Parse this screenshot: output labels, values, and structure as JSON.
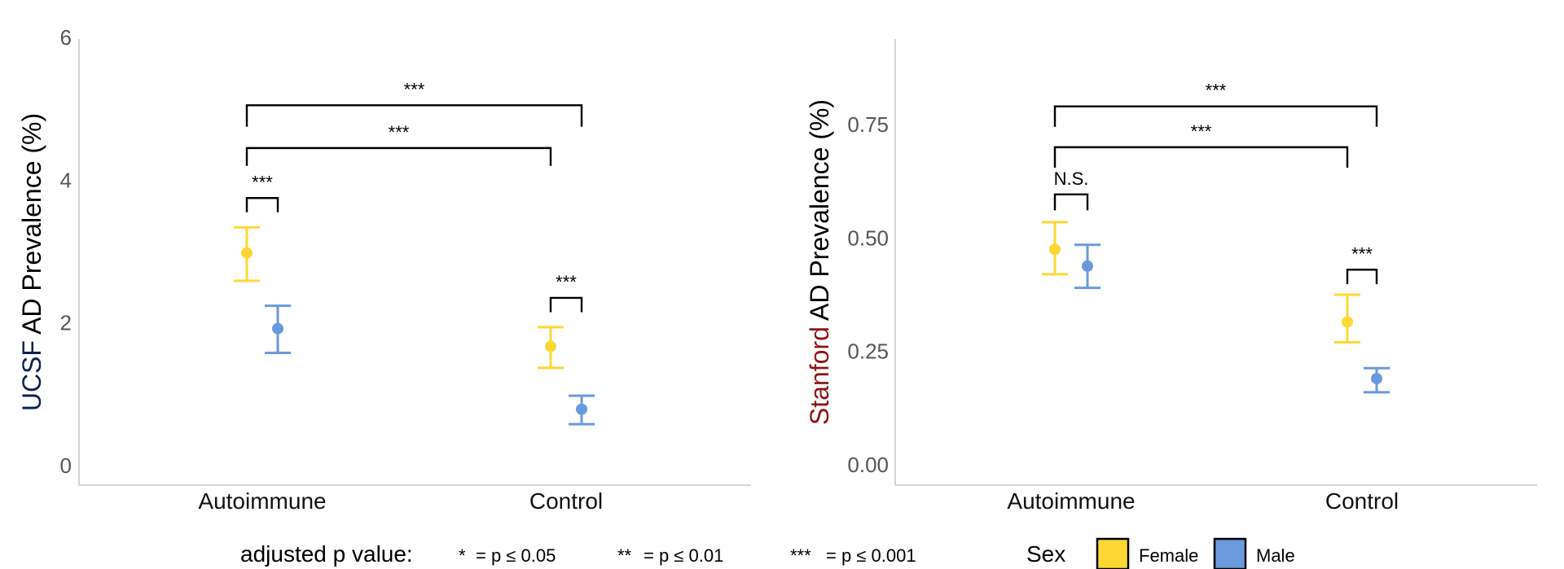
{
  "colors": {
    "female": "#FDD835",
    "male": "#6A99DE",
    "ucsf": "#0B2150",
    "stanford": "#8C1515",
    "bracket": "#000000"
  },
  "chart_data": [
    {
      "type": "errorbar",
      "panel": "left",
      "ylabel_prefix": "UCSF",
      "ylabel_rest": " AD Prevalence (%)",
      "ylim": [
        0,
        6
      ],
      "yticks": [
        0,
        2,
        4,
        6
      ],
      "ytick_labels": [
        "0",
        "2",
        "4",
        "6"
      ],
      "categories": [
        "Autoimmune",
        "Control"
      ],
      "series": [
        {
          "name": "Female",
          "color_key": "female",
          "values": [
            2.98,
            1.67
          ],
          "lower": [
            2.59,
            1.37
          ],
          "upper": [
            3.34,
            1.94
          ]
        },
        {
          "name": "Male",
          "color_key": "male",
          "values": [
            1.92,
            0.79
          ],
          "lower": [
            1.58,
            0.58
          ],
          "upper": [
            2.24,
            0.98
          ]
        }
      ],
      "brackets": [
        {
          "from": [
            0,
            0
          ],
          "to": [
            0,
            1
          ],
          "y": 3.75,
          "tip": 3.55,
          "label": "***"
        },
        {
          "from": [
            0,
            0
          ],
          "to": [
            1,
            0
          ],
          "y": 4.45,
          "tip": 4.2,
          "label": "***"
        },
        {
          "from": [
            0,
            0
          ],
          "to": [
            1,
            1
          ],
          "y": 5.05,
          "tip": 4.75,
          "label": "***"
        },
        {
          "from": [
            1,
            0
          ],
          "to": [
            1,
            1
          ],
          "y": 2.35,
          "tip": 2.15,
          "label": "***"
        }
      ]
    },
    {
      "type": "errorbar",
      "panel": "right",
      "ylabel_prefix": "Stanford",
      "ylabel_rest": " AD Prevalence (%)",
      "ylim": [
        -0.04,
        0.94
      ],
      "yticks": [
        0,
        0.25,
        0.5,
        0.75
      ],
      "ytick_labels": [
        "0.00",
        "0.25",
        "0.50",
        "0.75"
      ],
      "categories": [
        "Autoimmune",
        "Control"
      ],
      "series": [
        {
          "name": "Female",
          "color_key": "female",
          "values": [
            0.475,
            0.315
          ],
          "lower": [
            0.42,
            0.27
          ],
          "upper": [
            0.535,
            0.375
          ]
        },
        {
          "name": "Male",
          "color_key": "male",
          "values": [
            0.438,
            0.19
          ],
          "lower": [
            0.39,
            0.16
          ],
          "upper": [
            0.485,
            0.213
          ]
        }
      ],
      "brackets": [
        {
          "from": [
            0,
            0
          ],
          "to": [
            0,
            1
          ],
          "y": 0.596,
          "tip": 0.561,
          "label": "N.S."
        },
        {
          "from": [
            0,
            0
          ],
          "to": [
            1,
            0
          ],
          "y": 0.7,
          "tip": 0.655,
          "label": "***"
        },
        {
          "from": [
            0,
            0
          ],
          "to": [
            1,
            1
          ],
          "y": 0.79,
          "tip": 0.745,
          "label": "***"
        },
        {
          "from": [
            1,
            0
          ],
          "to": [
            1,
            1
          ],
          "y": 0.43,
          "tip": 0.398,
          "label": "***"
        }
      ]
    }
  ],
  "legend": {
    "pvalue_title": "adjusted p value:",
    "pvalue_items": [
      {
        "stars": "*",
        "text": "= p ≤ 0.05"
      },
      {
        "stars": "**",
        "text": "= p ≤ 0.01"
      },
      {
        "stars": "***",
        "text": "= p ≤ 0.001"
      }
    ],
    "sex_title": "Sex",
    "sex_items": [
      {
        "label": "Female",
        "color_key": "female"
      },
      {
        "label": "Male",
        "color_key": "male"
      }
    ]
  }
}
